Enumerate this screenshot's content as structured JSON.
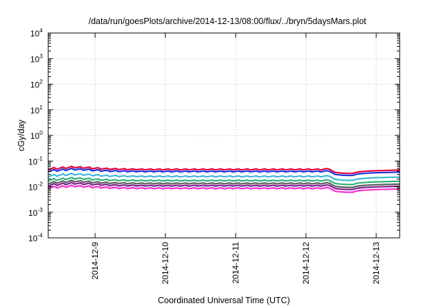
{
  "chart_data": {
    "type": "line",
    "title": "/data/run/goesPlots/archive/2014-12-13/08:00/flux/../bryn/5daysMars.plot",
    "xlabel": "Coordinated Universal Time (UTC)",
    "ylabel": "cGy/day",
    "yscale": "log",
    "ylim": [
      0.0001,
      10000
    ],
    "xlim": [
      "2014-12-08T08:00",
      "2014-12-13T08:00"
    ],
    "grid": true,
    "legend": "none",
    "x_ticks": [
      "2014-12-9",
      "2014-12-10",
      "2014-12-11",
      "2014-12-12",
      "2014-12-13"
    ],
    "y_ticks": [
      {
        "base": "10",
        "exp": "4"
      },
      {
        "base": "10",
        "exp": "3"
      },
      {
        "base": "10",
        "exp": "2"
      },
      {
        "base": "10",
        "exp": "1"
      },
      {
        "base": "10",
        "exp": "0"
      },
      {
        "base": "10",
        "exp": "-1"
      },
      {
        "base": "10",
        "exp": "-2"
      },
      {
        "base": "10",
        "exp": "-3"
      },
      {
        "base": "10",
        "exp": "-4"
      }
    ],
    "profile": {
      "note": "sawtooth pattern with ~3-hour period; x values are dates",
      "x": [
        "2014-12-08T08:00",
        "2014-12-08T10:00",
        "2014-12-08T11:00",
        "2014-12-08T13:00",
        "2014-12-08T14:00",
        "2014-12-08T16:00",
        "2014-12-08T17:00",
        "2014-12-08T19:00",
        "2014-12-08T20:00",
        "2014-12-08T22:00",
        "2014-12-08T23:00",
        "2014-12-09T01:00",
        "2014-12-09T02:00",
        "2014-12-09T04:00",
        "2014-12-09T05:00",
        "2014-12-09T07:00",
        "2014-12-09T08:00",
        "2014-12-09T10:00",
        "2014-12-09T11:00",
        "2014-12-09T13:00",
        "2014-12-09T14:00",
        "2014-12-09T16:00",
        "2014-12-09T17:00",
        "2014-12-09T19:00",
        "2014-12-09T20:00",
        "2014-12-09T22:00",
        "2014-12-09T23:00",
        "2014-12-10T01:00",
        "2014-12-10T02:00",
        "2014-12-10T04:00",
        "2014-12-10T05:00",
        "2014-12-10T07:00",
        "2014-12-10T08:00",
        "2014-12-10T10:00",
        "2014-12-10T11:00",
        "2014-12-10T13:00",
        "2014-12-10T14:00",
        "2014-12-10T16:00",
        "2014-12-10T17:00",
        "2014-12-10T19:00",
        "2014-12-10T20:00",
        "2014-12-10T22:00",
        "2014-12-10T23:00",
        "2014-12-11T01:00",
        "2014-12-11T02:00",
        "2014-12-11T04:00",
        "2014-12-11T05:00",
        "2014-12-11T07:00",
        "2014-12-11T08:00",
        "2014-12-11T10:00",
        "2014-12-11T11:00",
        "2014-12-11T13:00",
        "2014-12-11T14:00",
        "2014-12-11T16:00",
        "2014-12-11T17:00",
        "2014-12-11T19:00",
        "2014-12-11T20:00",
        "2014-12-11T22:00",
        "2014-12-11T23:00",
        "2014-12-12T01:00",
        "2014-12-12T02:00",
        "2014-12-12T04:00",
        "2014-12-12T05:00",
        "2014-12-12T07:00",
        "2014-12-12T08:00",
        "2014-12-12T10:00",
        "2014-12-12T12:00",
        "2014-12-12T14:00",
        "2014-12-12T16:00",
        "2014-12-12T17:00",
        "2014-12-12T18:00",
        "2014-12-12T20:00",
        "2014-12-13T00:00",
        "2014-12-13T04:00",
        "2014-12-13T08:00"
      ],
      "relative": [
        0.75,
        0.93,
        0.8,
        0.98,
        0.85,
        1.04,
        0.9,
        1.0,
        0.87,
        0.97,
        0.83,
        0.92,
        0.8,
        0.88,
        0.78,
        0.86,
        0.77,
        0.84,
        0.76,
        0.83,
        0.76,
        0.82,
        0.75,
        0.82,
        0.75,
        0.82,
        0.75,
        0.82,
        0.75,
        0.82,
        0.75,
        0.82,
        0.75,
        0.82,
        0.75,
        0.82,
        0.75,
        0.82,
        0.75,
        0.82,
        0.75,
        0.82,
        0.75,
        0.82,
        0.75,
        0.82,
        0.75,
        0.82,
        0.75,
        0.82,
        0.75,
        0.82,
        0.75,
        0.82,
        0.75,
        0.82,
        0.75,
        0.82,
        0.75,
        0.82,
        0.75,
        0.82,
        0.75,
        0.84,
        0.8,
        0.6,
        0.57,
        0.55,
        0.55,
        0.6,
        0.63,
        0.66,
        0.7,
        0.72,
        0.74
      ]
    },
    "series": [
      {
        "color": "#e8003a",
        "peak": 0.06
      },
      {
        "color": "#1a2fe0",
        "peak": 0.05
      },
      {
        "color": "#3fb8d9",
        "peak": 0.032
      },
      {
        "color": "#2bb37a",
        "peak": 0.022
      },
      {
        "color": "#5a5a5a",
        "peak": 0.017
      },
      {
        "color": "#7a1f8c",
        "peak": 0.014
      },
      {
        "color": "#ff2bd5",
        "peak": 0.011
      }
    ]
  }
}
